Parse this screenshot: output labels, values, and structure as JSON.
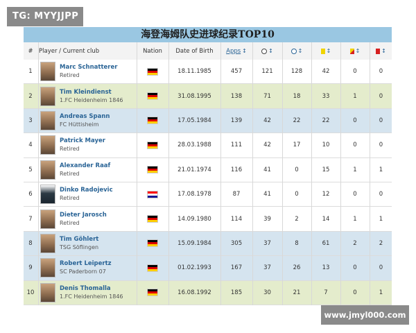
{
  "watermark_top": "TG: MYYJJPP",
  "watermark_bottom": "www.jmyl000.com",
  "title": "海登海姆队史进球纪录TOP10",
  "header": {
    "rank": "#",
    "player": "Player / Current club",
    "nation": "Nation",
    "dob": "Date of Birth",
    "apps": "Apps",
    "sort": "↕",
    "goals_icon": "ball-icon",
    "assists_icon": "assist-ball-icon",
    "yellow_icon": "yellow-card-icon",
    "yellow_red_icon": "yellow-red-card-icon",
    "red_icon": "red-card-icon"
  },
  "rows": [
    {
      "rank": "1",
      "name": "Marc Schnatterer",
      "club": "Retired",
      "nation": "germany",
      "dob": "18.11.1985",
      "apps": "457",
      "goals": "121",
      "assists": "128",
      "yellow": "42",
      "yr": "0",
      "red": "0"
    },
    {
      "rank": "2",
      "name": "Tim Kleindienst",
      "club": "1.FC Heidenheim 1846",
      "nation": "germany",
      "dob": "31.08.1995",
      "apps": "138",
      "goals": "71",
      "assists": "18",
      "yellow": "33",
      "yr": "1",
      "red": "0"
    },
    {
      "rank": "3",
      "name": "Andreas Spann",
      "club": "FC Hüttisheim",
      "nation": "germany",
      "dob": "17.05.1984",
      "apps": "139",
      "goals": "42",
      "assists": "22",
      "yellow": "22",
      "yr": "0",
      "red": "0"
    },
    {
      "rank": "4",
      "name": "Patrick Mayer",
      "club": "Retired",
      "nation": "germany",
      "dob": "28.03.1988",
      "apps": "111",
      "goals": "42",
      "assists": "17",
      "yellow": "10",
      "yr": "0",
      "red": "0"
    },
    {
      "rank": "5",
      "name": "Alexander Raaf",
      "club": "Retired",
      "nation": "germany",
      "dob": "21.01.1974",
      "apps": "116",
      "goals": "41",
      "assists": "0",
      "yellow": "15",
      "yr": "1",
      "red": "1"
    },
    {
      "rank": "6",
      "name": "Dinko Radojevic",
      "club": "Retired",
      "nation": "croatia",
      "dob": "17.08.1978",
      "apps": "87",
      "goals": "41",
      "assists": "0",
      "yellow": "12",
      "yr": "0",
      "red": "0"
    },
    {
      "rank": "7",
      "name": "Dieter Jarosch",
      "club": "Retired",
      "nation": "germany",
      "dob": "14.09.1980",
      "apps": "114",
      "goals": "39",
      "assists": "2",
      "yellow": "14",
      "yr": "1",
      "red": "1"
    },
    {
      "rank": "8",
      "name": "Tim Göhlert",
      "club": "TSG Söflingen",
      "nation": "germany",
      "dob": "15.09.1984",
      "apps": "305",
      "goals": "37",
      "assists": "8",
      "yellow": "61",
      "yr": "2",
      "red": "2"
    },
    {
      "rank": "9",
      "name": "Robert Leipertz",
      "club": "SC Paderborn 07",
      "nation": "germany",
      "dob": "01.02.1993",
      "apps": "167",
      "goals": "37",
      "assists": "26",
      "yellow": "13",
      "yr": "0",
      "red": "0"
    },
    {
      "rank": "10",
      "name": "Denis Thomalla",
      "club": "1.FC Heidenheim 1846",
      "nation": "germany",
      "dob": "16.08.1992",
      "apps": "185",
      "goals": "30",
      "assists": "21",
      "yellow": "7",
      "yr": "0",
      "red": "1"
    }
  ],
  "row_colors": {
    "white": "#ffffff",
    "green": "#e4eccc",
    "blue": "#d5e4ef"
  },
  "row_color_pattern": [
    "white",
    "green",
    "blue",
    "white",
    "white",
    "white",
    "white",
    "blue",
    "blue",
    "green"
  ]
}
